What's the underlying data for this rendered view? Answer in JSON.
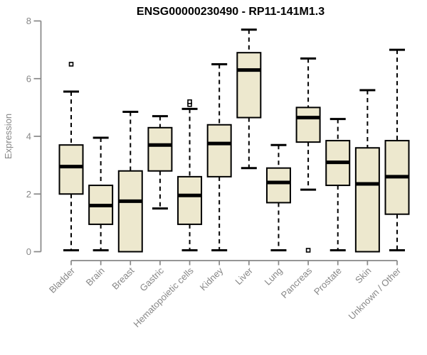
{
  "chart_data": {
    "type": "boxplot",
    "title": "ENSG00000230490 - RP11-141M1.3",
    "ylabel": "Expression",
    "xlabel": "",
    "ylim": [
      0,
      8
    ],
    "yticks": [
      0,
      2,
      4,
      6,
      8
    ],
    "grid": false,
    "legend": "none",
    "categories": [
      "Bladder",
      "Brain",
      "Breast",
      "Gastric",
      "Hematopoietic cells",
      "Kidney",
      "Liver",
      "Lung",
      "Pancreas",
      "Prostate",
      "Skin",
      "Unknown / Other"
    ],
    "boxes": [
      {
        "category": "Bladder",
        "whisker_low": 0.05,
        "q1": 2.0,
        "median": 2.95,
        "q3": 3.7,
        "whisker_high": 5.55,
        "outliers": [
          6.5
        ]
      },
      {
        "category": "Brain",
        "whisker_low": 0.05,
        "q1": 0.95,
        "median": 1.6,
        "q3": 2.3,
        "whisker_high": 3.95,
        "outliers": []
      },
      {
        "category": "Breast",
        "whisker_low": 0.0,
        "q1": 0.0,
        "median": 1.75,
        "q3": 2.8,
        "whisker_high": 4.85,
        "outliers": []
      },
      {
        "category": "Gastric",
        "whisker_low": 1.5,
        "q1": 2.8,
        "median": 3.7,
        "q3": 4.3,
        "whisker_high": 4.7,
        "outliers": []
      },
      {
        "category": "Hematopoietic cells",
        "whisker_low": 0.05,
        "q1": 0.95,
        "median": 1.95,
        "q3": 2.6,
        "whisker_high": 4.95,
        "outliers": [
          5.1,
          5.2
        ]
      },
      {
        "category": "Kidney",
        "whisker_low": 0.05,
        "q1": 2.6,
        "median": 3.75,
        "q3": 4.4,
        "whisker_high": 6.5,
        "outliers": []
      },
      {
        "category": "Liver",
        "whisker_low": 2.9,
        "q1": 4.65,
        "median": 6.3,
        "q3": 6.9,
        "whisker_high": 7.7,
        "outliers": []
      },
      {
        "category": "Lung",
        "whisker_low": 0.05,
        "q1": 1.7,
        "median": 2.4,
        "q3": 2.9,
        "whisker_high": 3.7,
        "outliers": []
      },
      {
        "category": "Pancreas",
        "whisker_low": 2.15,
        "q1": 3.8,
        "median": 4.65,
        "q3": 5.0,
        "whisker_high": 6.7,
        "outliers": [
          0.05
        ]
      },
      {
        "category": "Prostate",
        "whisker_low": 0.05,
        "q1": 2.3,
        "median": 3.1,
        "q3": 3.85,
        "whisker_high": 4.6,
        "outliers": []
      },
      {
        "category": "Skin",
        "whisker_low": 0.0,
        "q1": 0.0,
        "median": 2.35,
        "q3": 3.6,
        "whisker_high": 5.6,
        "outliers": []
      },
      {
        "category": "Unknown / Other",
        "whisker_low": 0.05,
        "q1": 1.3,
        "median": 2.6,
        "q3": 3.85,
        "whisker_high": 7.0,
        "outliers": []
      }
    ],
    "colors": {
      "box_fill": "#EDE8CE",
      "box_stroke": "#000000",
      "median": "#000000",
      "whisker": "#000000",
      "outlier_stroke": "#000000",
      "axis": "#878787",
      "tick_label": "#878787",
      "title": "#000000",
      "background": "#FFFFFF"
    }
  }
}
